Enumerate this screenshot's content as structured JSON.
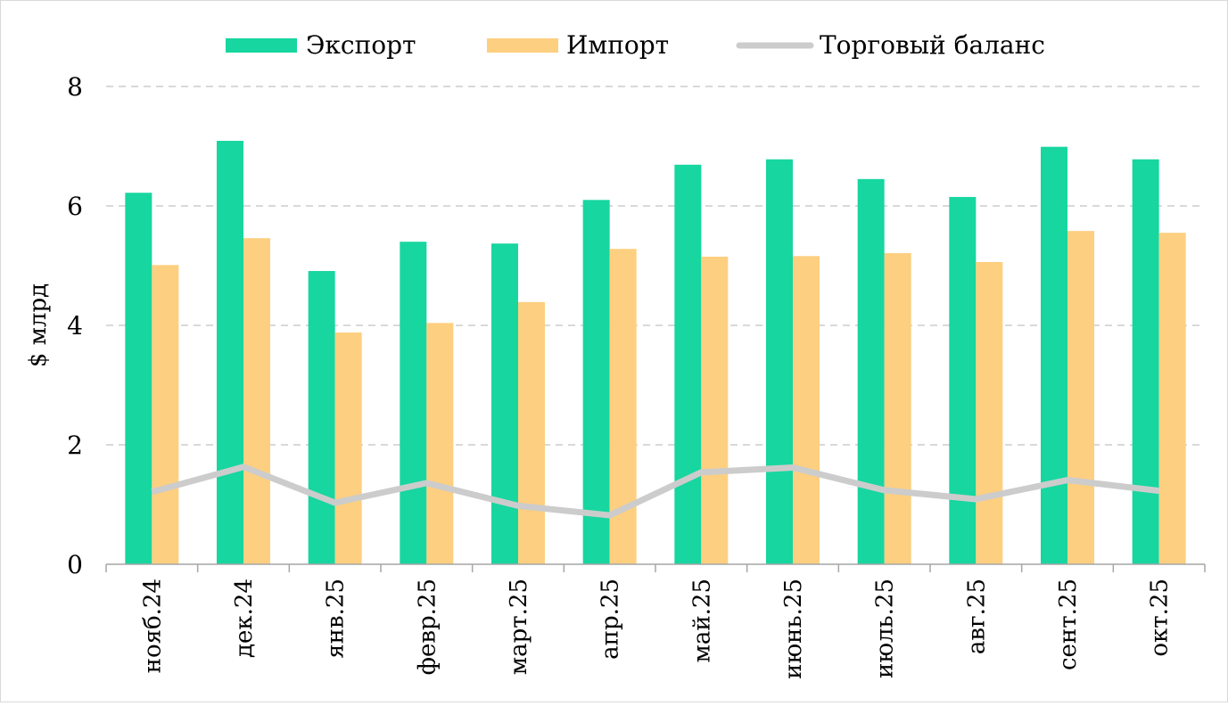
{
  "chart_data": {
    "type": "bar",
    "title": "",
    "xlabel": "",
    "ylabel": "$ млрд",
    "ylim": [
      0,
      8
    ],
    "yticks": [
      0,
      2,
      4,
      6,
      8
    ],
    "grid": true,
    "legend_placement": "top",
    "categories": [
      "нояб.24",
      "дек.24",
      "янв.25",
      "февр.25",
      "март.25",
      "апр.25",
      "май.25",
      "июнь.25",
      "июль.25",
      "авг.25",
      "сент.25",
      "окт.25"
    ],
    "series": [
      {
        "name": "Экспорт",
        "type": "bar",
        "color": "#17D6A0",
        "values": [
          6.22,
          7.09,
          4.91,
          5.4,
          5.37,
          6.1,
          6.69,
          6.78,
          6.45,
          6.15,
          6.99,
          6.78
        ]
      },
      {
        "name": "Импорт",
        "type": "bar",
        "color": "#FDCF80",
        "values": [
          5.01,
          5.46,
          3.88,
          4.04,
          4.39,
          5.28,
          5.15,
          5.16,
          5.21,
          5.06,
          5.58,
          5.55
        ]
      },
      {
        "name": "Торговый баланс",
        "type": "line",
        "color": "#CCCCCC",
        "values": [
          1.21,
          1.63,
          1.03,
          1.36,
          0.98,
          0.82,
          1.54,
          1.62,
          1.24,
          1.09,
          1.41,
          1.23
        ]
      }
    ]
  }
}
